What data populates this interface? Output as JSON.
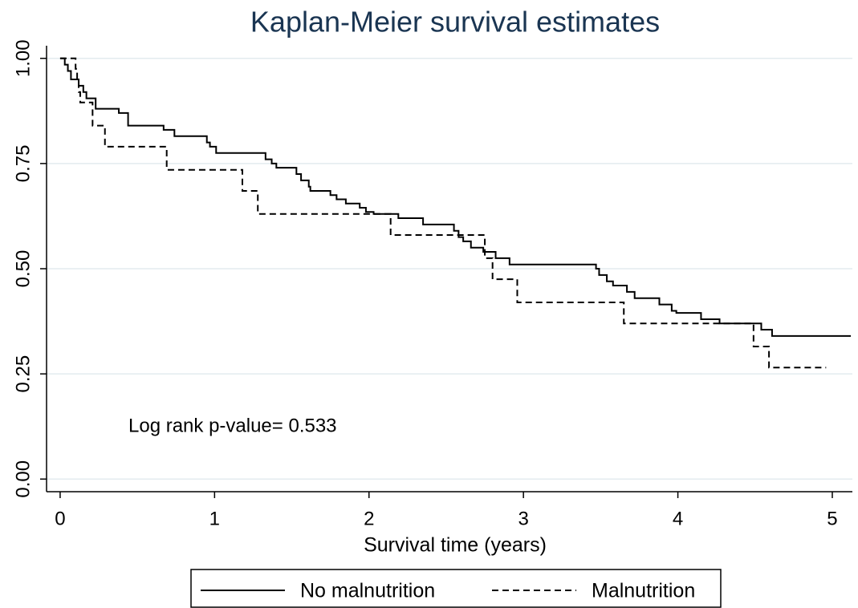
{
  "chart_data": {
    "type": "step",
    "title": "Kaplan-Meier survival estimates",
    "x_label": "Survival time (years)",
    "annotations": [
      "Log rank p-value= 0.533"
    ],
    "xlim": [
      -0.088,
      5.13
    ],
    "ylim": [
      -0.03,
      1.03
    ],
    "xticks": [
      0,
      1,
      2,
      3,
      4,
      5
    ],
    "yticks": [
      {
        "value": 0,
        "label": "0.00"
      },
      {
        "value": 0.25,
        "label": "0.25"
      },
      {
        "value": 0.5,
        "label": "0.50"
      },
      {
        "value": 0.75,
        "label": "0.75"
      },
      {
        "value": 1,
        "label": "1.00"
      }
    ],
    "grid": true,
    "legend": "bottom",
    "series": [
      {
        "name": "No malnutrition",
        "color": "#000000",
        "dash": "solid",
        "x": [
          0,
          0.03,
          0.05,
          0.07,
          0.12,
          0.15,
          0.17,
          0.23,
          0.38,
          0.44,
          0.67,
          0.74,
          0.95,
          0.97,
          1.01,
          1.33,
          1.37,
          1.4,
          1.53,
          1.56,
          1.61,
          1.62,
          1.75,
          1.79,
          1.85,
          1.94,
          1.98,
          2.03,
          2.19,
          2.35,
          2.55,
          2.58,
          2.61,
          2.66,
          2.74,
          2.82,
          2.91,
          3.47,
          3.49,
          3.54,
          3.58,
          3.67,
          3.72,
          3.88,
          3.96,
          3.99,
          4.15,
          4.27,
          4.54,
          4.61,
          5.12
        ],
        "values": [
          1,
          0.985,
          0.97,
          0.95,
          0.935,
          0.92,
          0.905,
          0.88,
          0.87,
          0.84,
          0.83,
          0.815,
          0.8,
          0.79,
          0.775,
          0.76,
          0.75,
          0.74,
          0.725,
          0.71,
          0.695,
          0.685,
          0.675,
          0.665,
          0.655,
          0.645,
          0.635,
          0.63,
          0.62,
          0.605,
          0.59,
          0.575,
          0.565,
          0.55,
          0.54,
          0.525,
          0.51,
          0.5,
          0.485,
          0.47,
          0.46,
          0.445,
          0.43,
          0.415,
          0.4,
          0.395,
          0.38,
          0.37,
          0.355,
          0.34,
          0.34
        ]
      },
      {
        "name": "Malnutrition",
        "color": "#000000",
        "dash": "dashed",
        "x": [
          0,
          0.1,
          0.11,
          0.12,
          0.13,
          0.21,
          0.29,
          0.69,
          1.18,
          1.28,
          2.14,
          2.75,
          2.8,
          2.96,
          3.65,
          4.49,
          4.59,
          4.96
        ],
        "values": [
          1,
          0.975,
          0.95,
          0.92,
          0.895,
          0.84,
          0.79,
          0.735,
          0.685,
          0.63,
          0.58,
          0.525,
          0.475,
          0.42,
          0.37,
          0.315,
          0.265,
          0.265
        ]
      }
    ]
  }
}
